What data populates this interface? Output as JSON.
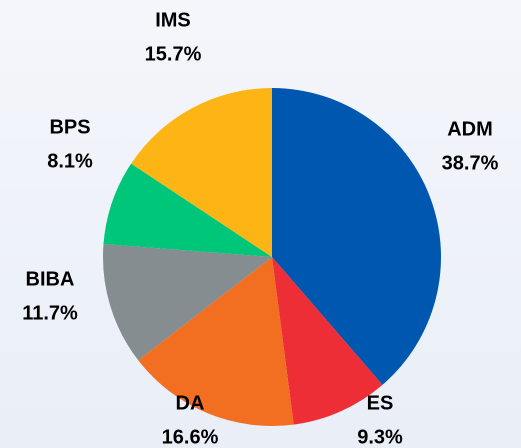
{
  "chart_data": {
    "type": "pie",
    "categories": [
      "ADM",
      "ES",
      "DA",
      "BIBA",
      "BPS",
      "IMS"
    ],
    "values": [
      38.7,
      9.3,
      16.6,
      11.7,
      8.1,
      15.7
    ],
    "value_labels": [
      "38.7%",
      "9.3%",
      "16.6%",
      "11.7%",
      "8.1%",
      "15.7%"
    ],
    "colors": [
      "#0057b0",
      "#ee2e36",
      "#f26f21",
      "#858d91",
      "#00c67a",
      "#fdb515"
    ]
  }
}
